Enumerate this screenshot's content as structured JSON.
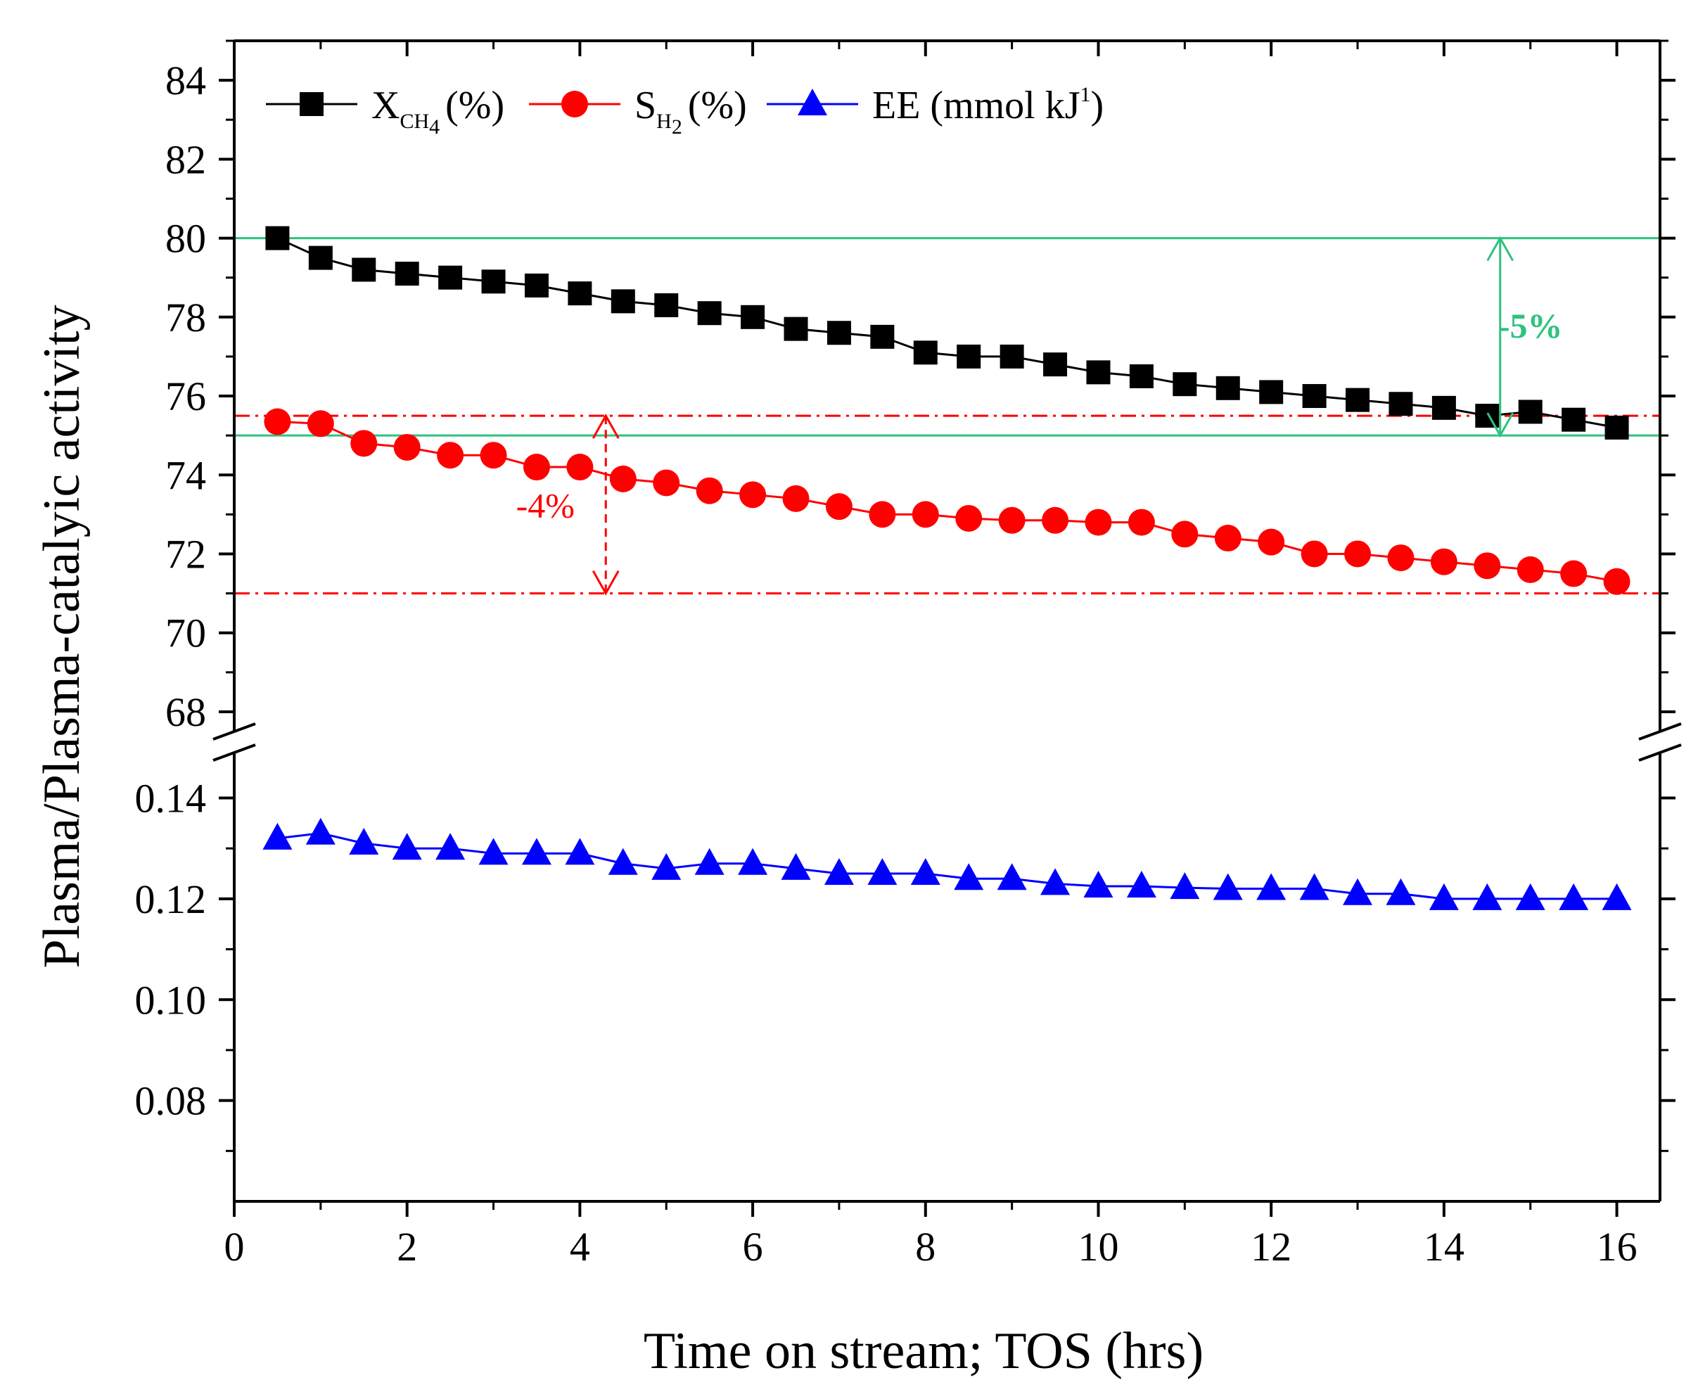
{
  "chart_data": {
    "type": "line",
    "title": "",
    "xlabel": "Time on stream; TOS (hrs)",
    "ylabel": "Plasma/Plasma-catalyic activity",
    "xlim": [
      0,
      16.5
    ],
    "x_ticks": [
      "0",
      "2",
      "4",
      "6",
      "8",
      "10",
      "12",
      "14",
      "16"
    ],
    "y_upper": {
      "range": [
        67.5,
        85
      ],
      "ticks": [
        "68",
        "70",
        "72",
        "74",
        "76",
        "78",
        "80",
        "82",
        "84"
      ]
    },
    "y_lower": {
      "range": [
        0.06,
        0.149
      ],
      "ticks": [
        "0.08",
        "0.10",
        "0.12",
        "0.14"
      ]
    },
    "x": [
      0.5,
      1,
      1.5,
      2,
      2.5,
      3,
      3.5,
      4,
      4.5,
      5,
      5.5,
      6,
      6.5,
      7,
      7.5,
      8,
      8.5,
      9,
      9.5,
      10,
      10.5,
      11,
      11.5,
      12,
      12.5,
      13,
      13.5,
      14,
      14.5,
      15,
      15.5,
      16
    ],
    "series": [
      {
        "name": "X_CH4 (%)",
        "legend_main": "X",
        "legend_sub": "CH",
        "legend_subsub": "4",
        "legend_tail": "(%)",
        "axis": "upper",
        "marker": "square",
        "color": "#000000",
        "values": [
          80.0,
          79.5,
          79.2,
          79.1,
          79.0,
          78.9,
          78.8,
          78.6,
          78.4,
          78.3,
          78.1,
          78.0,
          77.7,
          77.6,
          77.5,
          77.1,
          77.0,
          77.0,
          76.8,
          76.6,
          76.5,
          76.3,
          76.2,
          76.1,
          76.0,
          75.9,
          75.8,
          75.7,
          75.5,
          75.6,
          75.4,
          75.2
        ]
      },
      {
        "name": "S_H2 (%)",
        "legend_main": "S",
        "legend_sub": "H",
        "legend_subsub": "2",
        "legend_tail": "(%)",
        "axis": "upper",
        "marker": "circle",
        "color": "#ff0000",
        "values": [
          75.35,
          75.3,
          74.8,
          74.7,
          74.5,
          74.5,
          74.2,
          74.2,
          73.9,
          73.8,
          73.6,
          73.5,
          73.4,
          73.2,
          73.0,
          73.0,
          72.9,
          72.85,
          72.85,
          72.8,
          72.8,
          72.5,
          72.4,
          72.3,
          72.0,
          72.0,
          71.9,
          71.8,
          71.7,
          71.6,
          71.5,
          71.3
        ]
      },
      {
        "name": "EE (mmol kJ1)",
        "legend_main": "EE (mmol kJ",
        "legend_sup": "1",
        "legend_tail": ")",
        "axis": "lower",
        "marker": "triangle",
        "color": "#0000ff",
        "values": [
          0.132,
          0.133,
          0.131,
          0.13,
          0.13,
          0.129,
          0.129,
          0.129,
          0.127,
          0.126,
          0.127,
          0.127,
          0.126,
          0.125,
          0.125,
          0.125,
          0.124,
          0.124,
          0.123,
          0.1225,
          0.1225,
          0.1222,
          0.122,
          0.122,
          0.122,
          0.121,
          0.121,
          0.12,
          0.12,
          0.12,
          0.12,
          0.12
        ]
      }
    ],
    "annotations": [
      {
        "label": "-5%",
        "color": "#2ec27e",
        "line_values": [
          80.0,
          75.0
        ],
        "arrow_x": 14.65,
        "label_x": 15.0,
        "label_y": 77.8
      },
      {
        "label": "-4%",
        "color": "#ff0000",
        "line_values": [
          75.5,
          71.0
        ],
        "arrow_x": 4.3,
        "label_x": 3.6,
        "label_y": 73.25
      }
    ]
  }
}
